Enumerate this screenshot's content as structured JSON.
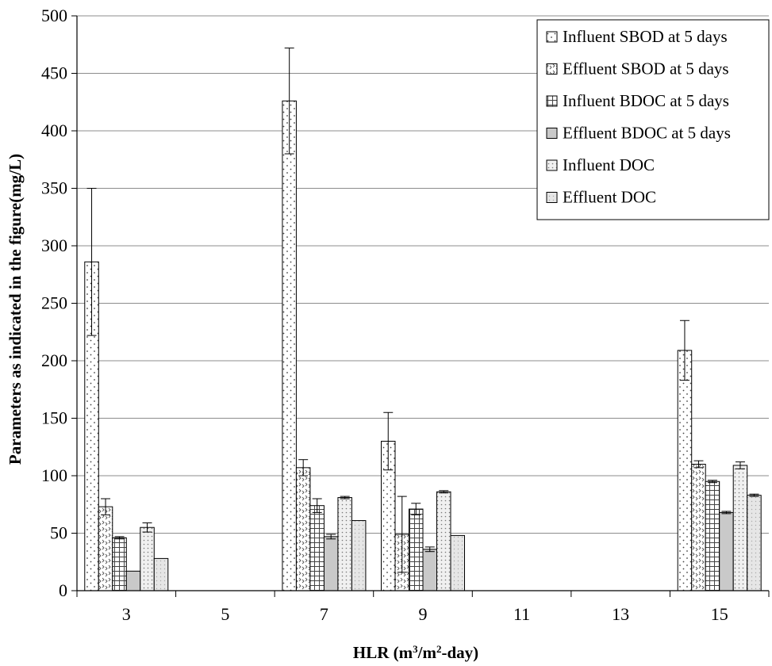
{
  "chart_data": {
    "type": "bar",
    "title": "",
    "xlabel": "HLR (m³/m²-day)",
    "ylabel": "Parameters as indicated in the figure(mg/L)",
    "categories": [
      "3",
      "5",
      "7",
      "9",
      "11",
      "13",
      "15"
    ],
    "ylim": [
      0,
      500
    ],
    "yticks": [
      0,
      50,
      100,
      150,
      200,
      250,
      300,
      350,
      400,
      450,
      500
    ],
    "grid": true,
    "legend_position": "top-right",
    "series": [
      {
        "name": "Influent SBOD at 5 days",
        "pattern": "dots",
        "values": [
          286,
          null,
          426,
          130,
          null,
          null,
          209
        ],
        "errors": [
          64,
          null,
          46,
          25,
          null,
          null,
          26
        ]
      },
      {
        "name": "Effluent SBOD at 5 days",
        "pattern": "waves",
        "values": [
          73,
          null,
          107,
          49,
          null,
          null,
          110
        ],
        "errors": [
          7,
          null,
          7,
          33,
          null,
          null,
          3
        ]
      },
      {
        "name": "Influent BDOC at 5 days",
        "pattern": "grid",
        "values": [
          46,
          null,
          74,
          71,
          null,
          null,
          95
        ],
        "errors": [
          1,
          null,
          6,
          5,
          null,
          null,
          1
        ]
      },
      {
        "name": "Effluent BDOC at 5 days",
        "pattern": "solid",
        "values": [
          17,
          null,
          47,
          36,
          null,
          null,
          68
        ],
        "errors": [
          0,
          null,
          2,
          2,
          null,
          null,
          1
        ]
      },
      {
        "name": "Influent DOC",
        "pattern": "fine-dots",
        "values": [
          55,
          null,
          81,
          86,
          null,
          null,
          109
        ],
        "errors": [
          4,
          null,
          1,
          1,
          null,
          null,
          3
        ]
      },
      {
        "name": "Effluent DOC",
        "pattern": "light",
        "values": [
          28,
          null,
          61,
          48,
          null,
          null,
          83
        ],
        "errors": [
          0,
          null,
          0,
          0,
          null,
          null,
          1
        ]
      }
    ]
  }
}
